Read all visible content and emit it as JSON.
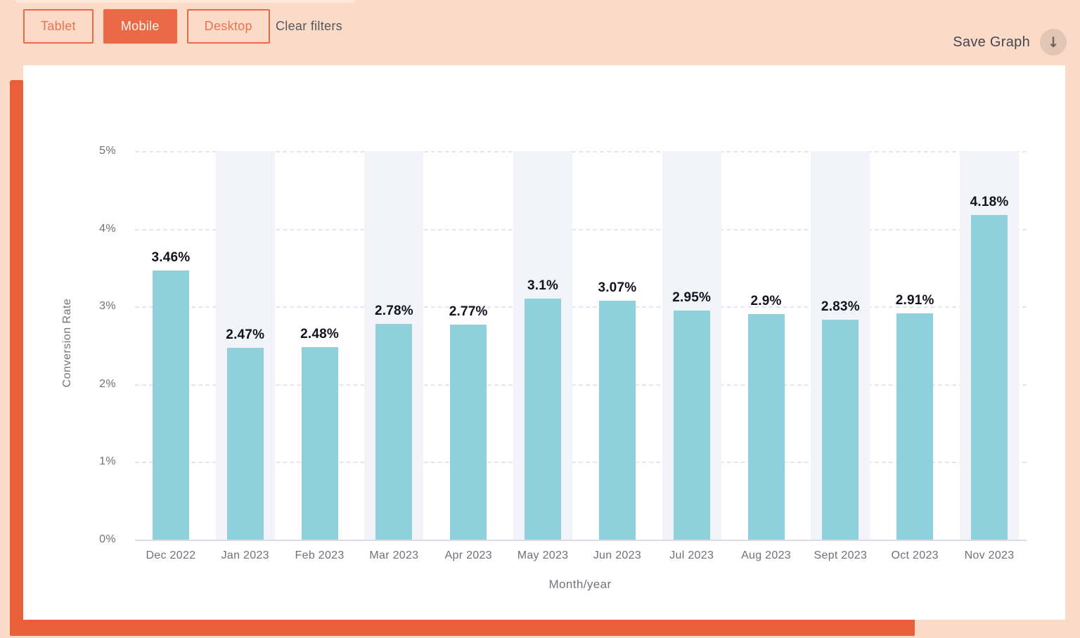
{
  "toolbar": {
    "filters": [
      {
        "label": "Tablet",
        "active": false
      },
      {
        "label": "Mobile",
        "active": true
      },
      {
        "label": "Desktop",
        "active": false
      }
    ],
    "clear_filters_label": "Clear filters",
    "save_graph_label": "Save Graph",
    "download_icon": "↓"
  },
  "colors": {
    "page_background": "#fbdbc8",
    "accent_orange": "#ea6a48",
    "stripe_orange": "#e7603a",
    "bar_fill": "#8ed1dd",
    "column_stripe": "#f3f4fa",
    "value_label_text": "#13131f",
    "axis_text": "#70707a",
    "download_circle": "#e3c5b5"
  },
  "chart_data": {
    "type": "bar",
    "title": "",
    "categories": [
      "Dec 2022",
      "Jan 2023",
      "Feb 2023",
      "Mar 2023",
      "Apr 2023",
      "May 2023",
      "Jun 2023",
      "Jul 2023",
      "Aug 2023",
      "Sept 2023",
      "Oct 2023",
      "Nov 2023"
    ],
    "values": [
      3.46,
      2.47,
      2.48,
      2.78,
      2.77,
      3.1,
      3.07,
      2.95,
      2.9,
      2.83,
      2.91,
      4.18
    ],
    "value_labels": [
      "3.46%",
      "2.47%",
      "2.48%",
      "2.78%",
      "2.77%",
      "3.1%",
      "3.07%",
      "2.95%",
      "2.9%",
      "2.83%",
      "2.91%",
      "4.18%"
    ],
    "xlabel": "Month/year",
    "ylabel": "Conversion Rate",
    "ylim": [
      0,
      5
    ],
    "ytick_labels": [
      "0%",
      "1%",
      "2%",
      "3%",
      "4%",
      "5%"
    ],
    "grid": "horizontal-dashed",
    "legend": "none",
    "striped_column_indices": [
      1,
      3,
      5,
      7,
      9,
      11
    ]
  }
}
